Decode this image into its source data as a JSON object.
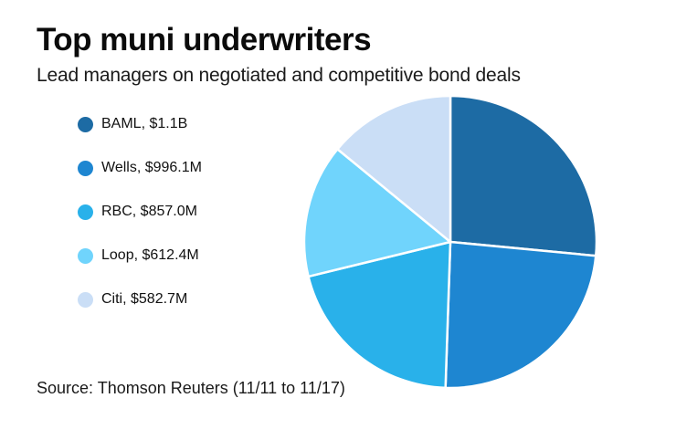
{
  "header": {
    "title": "Top muni underwriters",
    "subtitle": "Lead managers on negotiated and competitive bond deals"
  },
  "source_note": "Source: Thomson Reuters (11/11 to 11/17)",
  "colors": {
    "background": "#ffffff",
    "title_text": "#0b0b0b",
    "body_text": "#1a1a1a"
  },
  "legend": {
    "items": [
      {
        "label": "BAML, $1.1B",
        "color": "#1d6ba4"
      },
      {
        "label": "Wells, $996.1M",
        "color": "#1e86d1"
      },
      {
        "label": "RBC, $857.0M",
        "color": "#29b1ea"
      },
      {
        "label": "Loop, $612.4M",
        "color": "#70d4fc"
      },
      {
        "label": "Citi, $582.7M",
        "color": "#cadef6"
      }
    ]
  },
  "chart_data": {
    "type": "pie",
    "title": "Top muni underwriters",
    "subtitle": "Lead managers on negotiated and competitive bond deals",
    "categories": [
      "BAML",
      "Wells",
      "RBC",
      "Loop",
      "Citi"
    ],
    "values_millions": [
      1100,
      996.1,
      857.0,
      612.4,
      582.7
    ],
    "labels": [
      "BAML, $1.1B",
      "Wells, $996.1M",
      "RBC, $857.0M",
      "Loop, $612.4M",
      "Citi, $582.7M"
    ],
    "colors": [
      "#1d6ba4",
      "#1e86d1",
      "#29b1ea",
      "#70d4fc",
      "#cadef6"
    ],
    "start_angle_deg": 0,
    "direction": "clockwise",
    "slice_separator_color": "#ffffff",
    "legend_position": "left",
    "source": "Source: Thomson Reuters (11/11 to 11/17)"
  }
}
